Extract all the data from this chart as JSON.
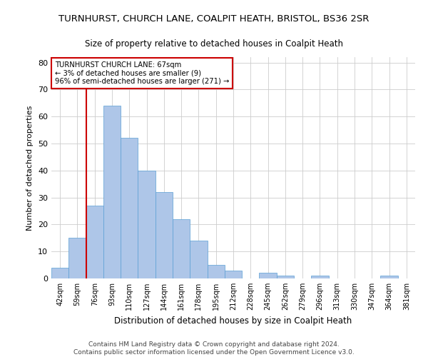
{
  "title": "TURNHURST, CHURCH LANE, COALPIT HEATH, BRISTOL, BS36 2SR",
  "subtitle": "Size of property relative to detached houses in Coalpit Heath",
  "xlabel": "Distribution of detached houses by size in Coalpit Heath",
  "ylabel": "Number of detached properties",
  "categories": [
    "42sqm",
    "59sqm",
    "76sqm",
    "93sqm",
    "110sqm",
    "127sqm",
    "144sqm",
    "161sqm",
    "178sqm",
    "195sqm",
    "212sqm",
    "228sqm",
    "245sqm",
    "262sqm",
    "279sqm",
    "296sqm",
    "313sqm",
    "330sqm",
    "347sqm",
    "364sqm",
    "381sqm"
  ],
  "values": [
    4,
    15,
    27,
    64,
    52,
    40,
    32,
    22,
    14,
    5,
    3,
    0,
    2,
    1,
    0,
    1,
    0,
    0,
    0,
    1,
    0
  ],
  "bar_color": "#aec6e8",
  "bar_edge_color": "#5a9fd4",
  "vline_x": 1.5,
  "annotation_line1": "TURNHURST CHURCH LANE: 67sqm",
  "annotation_line2": "← 3% of detached houses are smaller (9)",
  "annotation_line3": "96% of semi-detached houses are larger (271) →",
  "annotation_box_color": "#ffffff",
  "annotation_box_edge": "#cc0000",
  "vline_color": "#cc0000",
  "ylim": [
    0,
    82
  ],
  "yticks": [
    0,
    10,
    20,
    30,
    40,
    50,
    60,
    70,
    80
  ],
  "footer1": "Contains HM Land Registry data © Crown copyright and database right 2024.",
  "footer2": "Contains public sector information licensed under the Open Government Licence v3.0."
}
